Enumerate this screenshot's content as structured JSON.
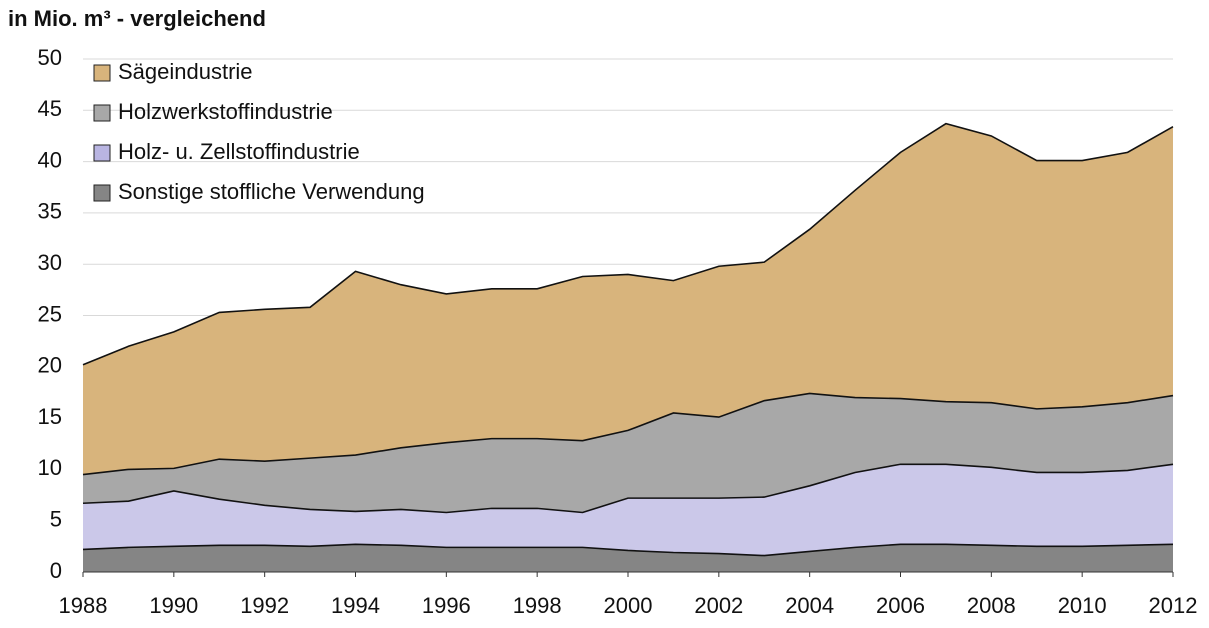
{
  "chart_data": {
    "type": "area",
    "stacked": true,
    "title": "in Mio. m³ - vergleichend",
    "x": [
      1988,
      1989,
      1990,
      1991,
      1992,
      1993,
      1994,
      1995,
      1996,
      1997,
      1998,
      1999,
      2000,
      2001,
      2002,
      2003,
      2004,
      2005,
      2006,
      2007,
      2008,
      2009,
      2010,
      2011,
      2012
    ],
    "xlim": [
      1988,
      2012
    ],
    "xticks": [
      1988,
      1990,
      1992,
      1994,
      1996,
      1998,
      2000,
      2002,
      2004,
      2006,
      2008,
      2010,
      2012
    ],
    "ylim": [
      0,
      50
    ],
    "yticks": [
      0,
      5,
      10,
      15,
      20,
      25,
      30,
      35,
      40,
      45,
      50
    ],
    "grid": true,
    "legend": "top-left",
    "series": [
      {
        "name": "Sägeindustrie",
        "color": "#d8b47c",
        "values": [
          10.7,
          12.0,
          13.3,
          14.3,
          14.8,
          14.7,
          17.9,
          15.9,
          14.5,
          14.6,
          14.6,
          16.0,
          15.2,
          12.9,
          14.7,
          13.5,
          16.0,
          20.2,
          24.0,
          27.1,
          26.0,
          24.2,
          24.0,
          24.4,
          26.2
        ]
      },
      {
        "name": "Holzwerkstoffindustrie",
        "color": "#a8a8a8",
        "values": [
          2.8,
          3.1,
          2.2,
          3.9,
          4.3,
          5.0,
          5.5,
          6.0,
          6.8,
          6.8,
          6.8,
          7.0,
          6.6,
          8.3,
          7.9,
          9.4,
          9.0,
          7.3,
          6.4,
          6.1,
          6.3,
          6.2,
          6.4,
          6.6,
          6.7
        ]
      },
      {
        "name": "Holz- u. Zellstoffindustrie",
        "color": "#b9b5e2",
        "values": [
          4.5,
          4.5,
          5.4,
          4.5,
          3.9,
          3.6,
          3.2,
          3.5,
          3.4,
          3.8,
          3.8,
          3.4,
          5.1,
          5.3,
          5.4,
          5.7,
          6.4,
          7.3,
          7.8,
          7.8,
          7.6,
          7.2,
          7.2,
          7.3,
          7.8
        ]
      },
      {
        "name": "Sonstige stoffliche Verwendung",
        "color": "#858585",
        "values": [
          2.2,
          2.4,
          2.5,
          2.6,
          2.6,
          2.5,
          2.7,
          2.6,
          2.4,
          2.4,
          2.4,
          2.4,
          2.1,
          1.9,
          1.8,
          1.6,
          2.0,
          2.4,
          2.7,
          2.7,
          2.6,
          2.5,
          2.5,
          2.6,
          2.7
        ]
      }
    ]
  }
}
